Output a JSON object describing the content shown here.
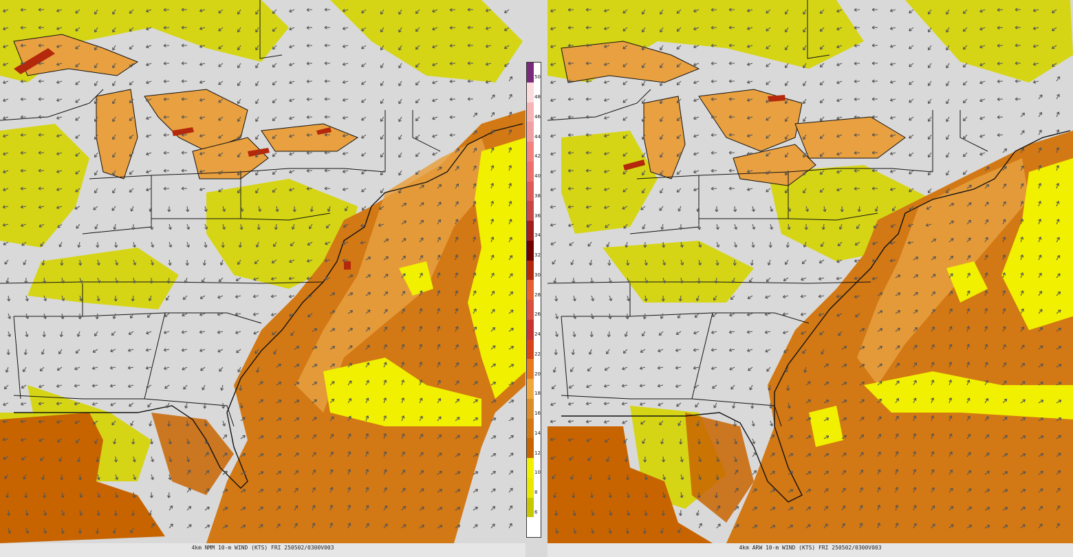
{
  "panels": [
    {
      "id": "left",
      "caption": "4km NMM 10-m WIND (KTS) FRI 250502/0300V003"
    },
    {
      "id": "right",
      "caption": "4km ARW 10-m WIND (KTS) FRI 250502/0300V003"
    }
  ],
  "colorbar": {
    "labels": [
      "50",
      "48",
      "46",
      "44",
      "42",
      "40",
      "38",
      "36",
      "34",
      "32",
      "30",
      "28",
      "26",
      "24",
      "22",
      "20",
      "18",
      "16",
      "14",
      "12",
      "10",
      "8",
      "6"
    ],
    "colors": {
      "6": "#c8c800",
      "8": "#e8e800",
      "10": "#f0f000",
      "12": "#c86400",
      "14": "#d27814",
      "16": "#dc8c28",
      "18": "#f0a83c",
      "20": "#e87a1e",
      "22": "#d84418",
      "24": "#c83232",
      "26": "#d85040",
      "28": "#e86030",
      "30": "#b4280c",
      "32": "#6e0000",
      "34": "#a01e1e",
      "36": "#c84646",
      "38": "#dc5a5a",
      "40": "#ec7070",
      "42": "#f08282",
      "44": "#f0a0a0",
      "46": "#f6b4b4",
      "48": "#fadcdc",
      "50": "#7a2a7a"
    }
  },
  "map_colors": {
    "land": "#d9d9d9",
    "calm_yellow": "#d4d400",
    "bright_yellow": "#f0f000",
    "orange_light": "#e8a040",
    "orange_mid": "#d27814",
    "orange_dark": "#c86400",
    "red": "#b4280c",
    "border": "#111111",
    "arrow": "#555555"
  }
}
